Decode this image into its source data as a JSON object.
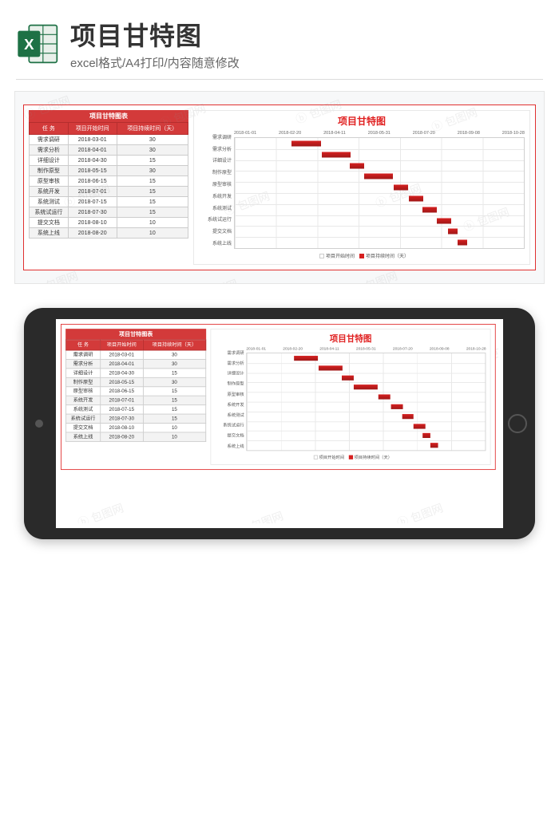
{
  "header": {
    "title": "项目甘特图",
    "subtitle": "excel格式/A4打印/内容随意修改"
  },
  "watermark_text": "包图网",
  "table": {
    "title": "项目甘特图表",
    "columns": [
      "任 务",
      "项目开始时间",
      "项目持续时间（天）"
    ],
    "rows": [
      [
        "需求调研",
        "2018-03-01",
        "30"
      ],
      [
        "需求分析",
        "2018-04-01",
        "30"
      ],
      [
        "详细设计",
        "2018-04-30",
        "15"
      ],
      [
        "制作原型",
        "2018-05-15",
        "30"
      ],
      [
        "原型审核",
        "2018-06-15",
        "15"
      ],
      [
        "系统开发",
        "2018-07-01",
        "15"
      ],
      [
        "系统测试",
        "2018-07-15",
        "15"
      ],
      [
        "系统试运行",
        "2018-07-30",
        "15"
      ],
      [
        "提交文档",
        "2018-08-10",
        "10"
      ],
      [
        "系统上线",
        "2018-08-20",
        "10"
      ]
    ]
  },
  "chart": {
    "title": "项目甘特图",
    "x_ticks": [
      "2018-01-01",
      "2018-02-20",
      "2018-04-11",
      "2018-05-31",
      "2018-07-20",
      "2018-09-08",
      "2018-10-28"
    ],
    "x_min_days": 0,
    "x_max_days": 300,
    "bar_color": "#d62020",
    "grid_color": "#e8e8e8",
    "bars": [
      {
        "label": "需求调研",
        "start_pct": 19.7,
        "width_pct": 10.0
      },
      {
        "label": "需求分析",
        "start_pct": 30.0,
        "width_pct": 10.0
      },
      {
        "label": "详细设计",
        "start_pct": 39.7,
        "width_pct": 5.0
      },
      {
        "label": "制作原型",
        "start_pct": 44.7,
        "width_pct": 10.0
      },
      {
        "label": "原型审核",
        "start_pct": 55.0,
        "width_pct": 5.0
      },
      {
        "label": "系统开发",
        "start_pct": 60.3,
        "width_pct": 5.0
      },
      {
        "label": "系统测试",
        "start_pct": 65.0,
        "width_pct": 5.0
      },
      {
        "label": "系统试运行",
        "start_pct": 70.0,
        "width_pct": 5.0
      },
      {
        "label": "提交文档",
        "start_pct": 73.7,
        "width_pct": 3.3
      },
      {
        "label": "系统上线",
        "start_pct": 77.0,
        "width_pct": 3.3
      }
    ],
    "legend": [
      "项目开始时间",
      "项目持续时间（天）"
    ]
  }
}
